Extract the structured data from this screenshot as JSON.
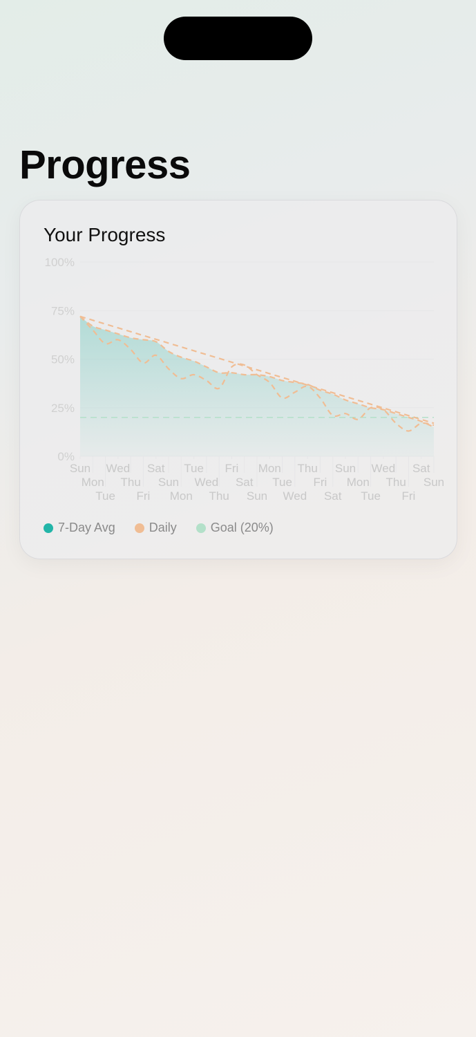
{
  "page": {
    "title": "Progress"
  },
  "card": {
    "title": "Your Progress"
  },
  "colors": {
    "avg": "#22b5a8",
    "daily": "#f0bd94",
    "goal": "#b3e0c9",
    "fill": "#9fd6cf"
  },
  "legend": [
    {
      "label": "7-Day Avg",
      "color": "#22b5a8"
    },
    {
      "label": "Daily",
      "color": "#f0bd94"
    },
    {
      "label": "Goal (20%)",
      "color": "#b3e0c9"
    }
  ],
  "chart_data": {
    "type": "line",
    "ylim": [
      0,
      100
    ],
    "yticks": [
      "0%",
      "25%",
      "50%",
      "75%",
      "100%"
    ],
    "categories": [
      "Sun",
      "Mon",
      "Tue",
      "Wed",
      "Thu",
      "Fri",
      "Sat",
      "Sun",
      "Mon",
      "Tue",
      "Wed",
      "Thu",
      "Fri",
      "Sat",
      "Sun",
      "Mon",
      "Tue",
      "Wed",
      "Thu",
      "Fri",
      "Sat",
      "Sun",
      "Mon",
      "Tue",
      "Wed",
      "Thu",
      "Fri",
      "Sat",
      "Sun"
    ],
    "series": [
      {
        "name": "7-Day Avg",
        "values": [
          72,
          67,
          65,
          63,
          61,
          60,
          59,
          54,
          51,
          49,
          46,
          43,
          43,
          42,
          42,
          41,
          39,
          38,
          37,
          34,
          32,
          29,
          27,
          25,
          24,
          22,
          20,
          18,
          15
        ]
      },
      {
        "name": "Daily",
        "values": [
          72,
          65,
          58,
          60,
          55,
          48,
          52,
          45,
          40,
          42,
          39,
          35,
          46,
          47,
          42,
          38,
          30,
          33,
          36,
          30,
          21,
          22,
          19,
          25,
          24,
          17,
          13,
          17,
          16
        ]
      }
    ],
    "trend": {
      "start": 72,
      "end": 17
    },
    "goal": 20,
    "legend_position": "bottom-left",
    "grid": true
  }
}
